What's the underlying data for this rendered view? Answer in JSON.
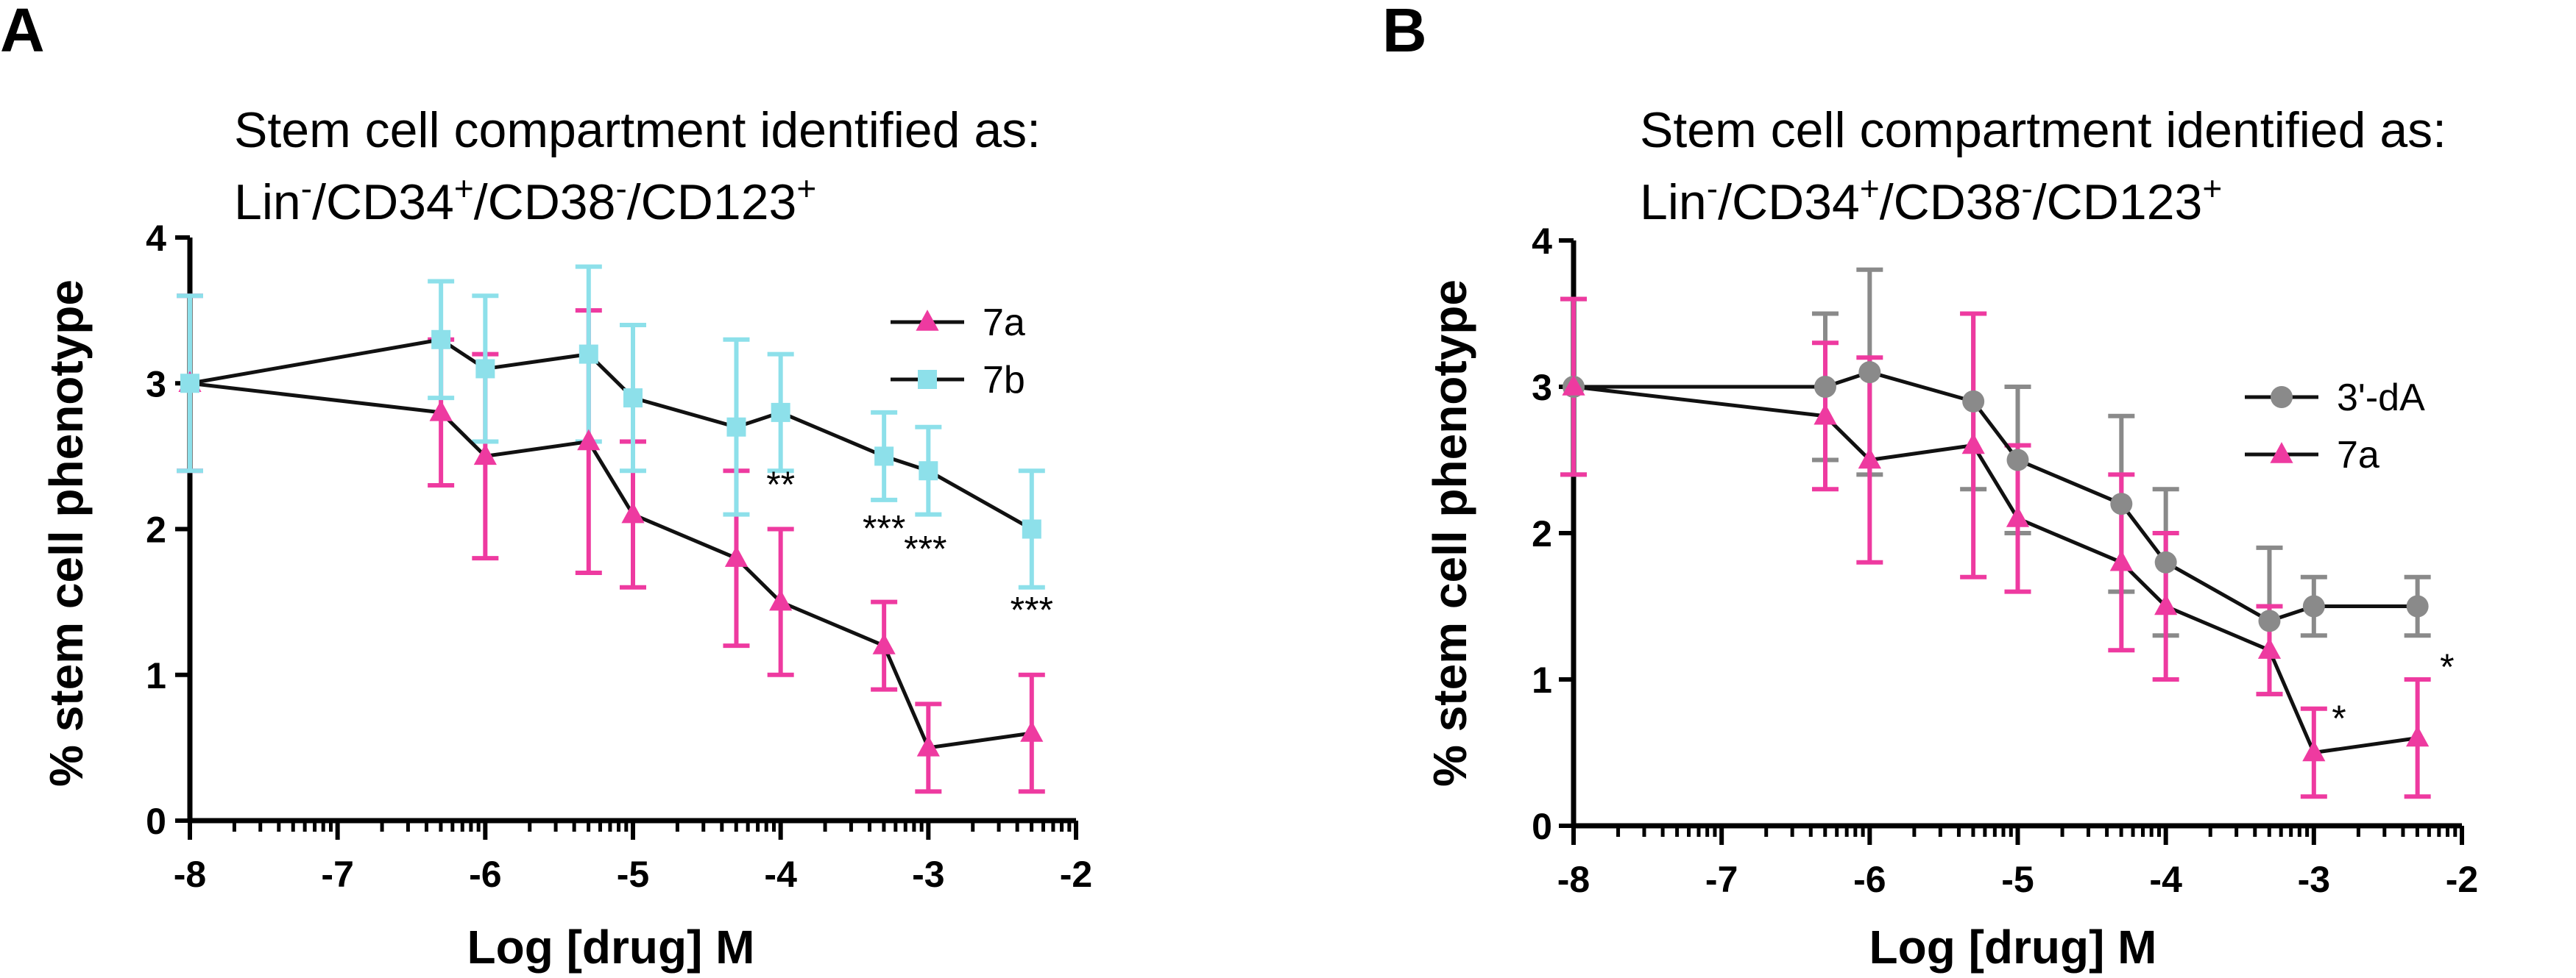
{
  "panels": [
    {
      "letter": "A",
      "title_line1": "Stem cell compartment identified as:",
      "title_line2": {
        "p1": "Lin",
        "s1": "-",
        "p2": "/CD34",
        "s2": "+",
        "p3": "/CD38",
        "s3": "-",
        "p4": "/CD123",
        "s4": "+"
      },
      "legend": [
        "7a",
        "7b"
      ]
    },
    {
      "letter": "B",
      "title_line1": "Stem cell compartment identified as:",
      "title_line2": {
        "p1": "Lin",
        "s1": "-",
        "p2": "/CD34",
        "s2": "+",
        "p3": "/CD38",
        "s3": "-",
        "p4": "/CD123",
        "s4": "+"
      },
      "legend": [
        "3'-dA",
        "7a"
      ]
    }
  ],
  "chart_data": [
    {
      "type": "line",
      "title": "Stem cell compartment identified as: Lin-/CD34+/CD38-/CD123+",
      "xlabel": "Log [drug] M",
      "ylabel": "% stem cell phenotype",
      "xlim": [
        -8,
        -2
      ],
      "ylim": [
        0,
        4
      ],
      "xticks": [
        "-8",
        "-7",
        "-6",
        "-5",
        "-4",
        "-3",
        "-2"
      ],
      "yticks": [
        "0",
        "1",
        "2",
        "3",
        "4"
      ],
      "legend_position": "top-right",
      "series": [
        {
          "name": "7a",
          "marker": "triangle",
          "color": "#ee3aa0",
          "x": [
            -8,
            -6.3,
            -6,
            -5.3,
            -5,
            -4.3,
            -4,
            -3.3,
            -3,
            -2.3
          ],
          "y": [
            3.0,
            2.8,
            2.5,
            2.6,
            2.1,
            1.8,
            1.5,
            1.2,
            0.5,
            0.6
          ],
          "err": [
            0.6,
            0.5,
            0.7,
            0.9,
            0.5,
            0.6,
            0.5,
            0.3,
            0.3,
            0.4
          ]
        },
        {
          "name": "7b",
          "marker": "square",
          "color": "#8de0ea",
          "x": [
            -8,
            -6.3,
            -6,
            -5.3,
            -5,
            -4.3,
            -4,
            -3.3,
            -3,
            -2.3
          ],
          "y": [
            3.0,
            3.3,
            3.1,
            3.2,
            2.9,
            2.7,
            2.8,
            2.5,
            2.4,
            2.0
          ],
          "err": [
            0.6,
            0.4,
            0.5,
            0.6,
            0.5,
            0.6,
            0.4,
            0.3,
            0.3,
            0.4
          ]
        }
      ],
      "annotations": [
        {
          "text": "**",
          "x": -4.0,
          "y": 2.32
        },
        {
          "text": "***",
          "x": -3.3,
          "y": 2.02
        },
        {
          "text": "***",
          "x": -3.02,
          "y": 1.88
        },
        {
          "text": "***",
          "x": -2.3,
          "y": 1.46
        }
      ]
    },
    {
      "type": "line",
      "title": "Stem cell compartment identified as: Lin-/CD34+/CD38-/CD123+",
      "xlabel": "Log [drug] M",
      "ylabel": "% stem cell phenotype",
      "xlim": [
        -8,
        -2
      ],
      "ylim": [
        0,
        4
      ],
      "xticks": [
        "-8",
        "-7",
        "-6",
        "-5",
        "-4",
        "-3",
        "-2"
      ],
      "yticks": [
        "0",
        "1",
        "2",
        "3",
        "4"
      ],
      "legend_position": "right",
      "series": [
        {
          "name": "3'-dA",
          "marker": "circle",
          "color": "#8a8a8a",
          "x": [
            -8,
            -6.3,
            -6,
            -5.3,
            -5,
            -4.3,
            -4,
            -3.3,
            -3,
            -2.3
          ],
          "y": [
            3.0,
            3.0,
            3.1,
            2.9,
            2.5,
            2.2,
            1.8,
            1.4,
            1.5,
            1.5
          ],
          "err": [
            0.6,
            0.5,
            0.7,
            0.6,
            0.5,
            0.6,
            0.5,
            0.5,
            0.2,
            0.2
          ]
        },
        {
          "name": "7a",
          "marker": "triangle",
          "color": "#ee3aa0",
          "x": [
            -8,
            -6.3,
            -6,
            -5.3,
            -5,
            -4.3,
            -4,
            -3.3,
            -3,
            -2.3
          ],
          "y": [
            3.0,
            2.8,
            2.5,
            2.6,
            2.1,
            1.8,
            1.5,
            1.2,
            0.5,
            0.6
          ],
          "err": [
            0.6,
            0.5,
            0.7,
            0.9,
            0.5,
            0.6,
            0.5,
            0.3,
            0.3,
            0.4
          ]
        }
      ],
      "annotations": [
        {
          "text": "*",
          "x": -2.83,
          "y": 0.75
        },
        {
          "text": "*",
          "x": -2.1,
          "y": 1.1
        }
      ]
    }
  ]
}
